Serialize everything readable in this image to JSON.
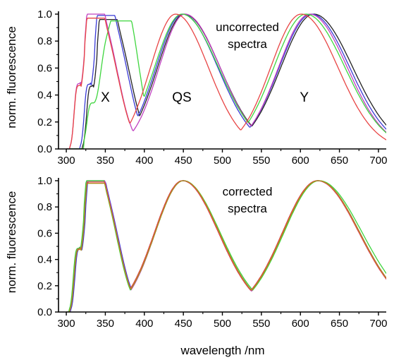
{
  "xlabel": "wavelength /nm",
  "chart_data": [
    {
      "type": "line",
      "panel": "top",
      "ylabel": "norm. fluorescence",
      "xlim": [
        290,
        710
      ],
      "ylim": [
        0.0,
        1.0
      ],
      "xticks": [
        300,
        350,
        400,
        450,
        500,
        550,
        600,
        650,
        700
      ],
      "xtick_labels": [
        "300",
        "350",
        "400",
        "450",
        "500",
        "550",
        "600",
        "650",
        "700"
      ],
      "yticks": [
        0.0,
        0.2,
        0.4,
        0.6,
        0.8,
        1.0
      ],
      "ytick_labels": [
        "0.0",
        "0.2",
        "0.4",
        "0.6",
        "0.8",
        "1.0"
      ],
      "annotation": [
        "uncorrected",
        "spectra"
      ],
      "band_labels": [
        {
          "text": "X",
          "x": 350,
          "y": 0.35
        },
        {
          "text": "QS",
          "x": 448,
          "y": 0.35
        },
        {
          "text": "Y",
          "x": 605,
          "y": 0.35
        }
      ],
      "series": [
        {
          "color": "#222222",
          "bands": [
            {
              "kind": "x",
              "peak": 346,
              "scale": 0.96
            },
            {
              "kind": "gauss",
              "peak": 451,
              "wl": 34,
              "wr": 46
            },
            {
              "kind": "gauss",
              "peak": 617,
              "wl": 42,
              "wr": 50
            }
          ]
        },
        {
          "color": "#3a3ad6",
          "bands": [
            {
              "kind": "x",
              "peak": 343,
              "scale": 0.99
            },
            {
              "kind": "gauss",
              "peak": 449,
              "wl": 34,
              "wr": 45
            },
            {
              "kind": "gauss",
              "peak": 614,
              "wl": 41,
              "wr": 49
            }
          ]
        },
        {
          "color": "#c040c0",
          "bands": [
            {
              "kind": "x",
              "peak": 330,
              "scale": 1.0
            },
            {
              "kind": "gauss",
              "peak": 452,
              "wl": 33,
              "wr": 45
            },
            {
              "kind": "gauss",
              "peak": 612,
              "wl": 40,
              "wr": 48
            }
          ]
        },
        {
          "color": "#3fd63f",
          "bands": [
            {
              "kind": "xg",
              "peak": 348,
              "scale": 0.95
            },
            {
              "kind": "gauss",
              "peak": 448,
              "wl": 35,
              "wr": 47
            },
            {
              "kind": "gauss",
              "peak": 607,
              "wl": 41,
              "wr": 50
            }
          ]
        },
        {
          "color": "#e84545",
          "bands": [
            {
              "kind": "x",
              "peak": 330,
              "scale": 0.97
            },
            {
              "kind": "gauss",
              "peak": 440,
              "wl": 32,
              "wr": 42
            },
            {
              "kind": "gauss",
              "peak": 601,
              "wl": 39,
              "wr": 47
            }
          ]
        }
      ]
    },
    {
      "type": "line",
      "panel": "bottom",
      "ylabel": "norm. fluorescence",
      "xlim": [
        290,
        710
      ],
      "ylim": [
        0.0,
        1.0
      ],
      "xticks": [
        300,
        350,
        400,
        450,
        500,
        550,
        600,
        650,
        700
      ],
      "xtick_labels": [
        "300",
        "350",
        "400",
        "450",
        "500",
        "550",
        "600",
        "650",
        "700"
      ],
      "yticks": [
        0.0,
        0.2,
        0.4,
        0.6,
        0.8,
        1.0
      ],
      "ytick_labels": [
        "0.0",
        "0.2",
        "0.4",
        "0.6",
        "0.8",
        "1.0"
      ],
      "annotation": [
        "corrected",
        "spectra"
      ],
      "band_labels": [],
      "series": [
        {
          "color": "#222222",
          "bands": [
            {
              "kind": "x",
              "peak": 330,
              "scale": 1.0
            },
            {
              "kind": "gauss",
              "peak": 449,
              "wl": 36,
              "wr": 46
            },
            {
              "kind": "gauss",
              "peak": 622,
              "wl": 45,
              "wr": 53
            }
          ]
        },
        {
          "color": "#3a3ad6",
          "bands": [
            {
              "kind": "x",
              "peak": 331,
              "scale": 0.99
            },
            {
              "kind": "gauss",
              "peak": 450,
              "wl": 36,
              "wr": 46
            },
            {
              "kind": "gauss",
              "peak": 623,
              "wl": 45,
              "wr": 53
            }
          ]
        },
        {
          "color": "#c040c0",
          "bands": [
            {
              "kind": "x",
              "peak": 330,
              "scale": 1.0
            },
            {
              "kind": "gauss",
              "peak": 449,
              "wl": 35,
              "wr": 46
            },
            {
              "kind": "gauss",
              "peak": 622,
              "wl": 44,
              "wr": 53
            }
          ]
        },
        {
          "color": "#3fd63f",
          "bands": [
            {
              "kind": "x",
              "peak": 329,
              "scale": 1.0
            },
            {
              "kind": "gauss",
              "peak": 450,
              "wl": 36,
              "wr": 47
            },
            {
              "kind": "gauss",
              "peak": 624,
              "wl": 45,
              "wr": 55
            }
          ]
        },
        {
          "color": "#e84545",
          "bands": [
            {
              "kind": "x",
              "peak": 330,
              "scale": 0.99
            },
            {
              "kind": "gauss",
              "peak": 449,
              "wl": 36,
              "wr": 46
            },
            {
              "kind": "gauss",
              "peak": 622,
              "wl": 45,
              "wr": 53
            }
          ]
        },
        {
          "color": "#b08a20",
          "bands": [
            {
              "kind": "x",
              "peak": 330,
              "scale": 0.98
            },
            {
              "kind": "gauss",
              "peak": 450,
              "wl": 36,
              "wr": 46
            },
            {
              "kind": "gauss",
              "peak": 623,
              "wl": 45,
              "wr": 53
            }
          ]
        }
      ]
    }
  ]
}
